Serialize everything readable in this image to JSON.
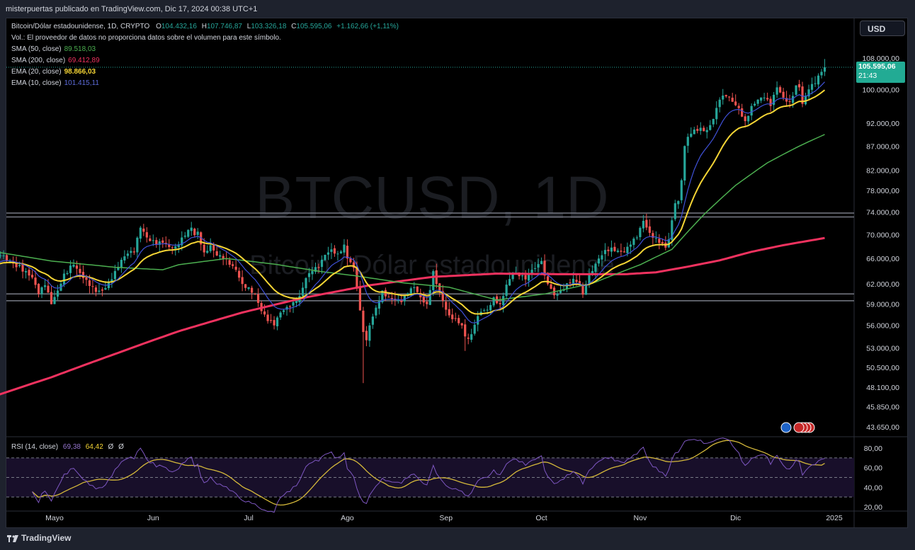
{
  "caption": "misterpuertas publicado en TradingView.com, Dic 17, 2024 00:38 UTC+1",
  "legend": {
    "title": "Bitcoin/Dólar estadounidense, 1D, CRYPTO",
    "o_label": "O",
    "o": "104.432,16",
    "h_label": "H",
    "h": "107.746,87",
    "l_label": "L",
    "l": "103.326,18",
    "c_label": "C",
    "c": "105.595,06",
    "change": "+1.162,66 (+1,11%)",
    "vol_note": "Vol.: El proveedor de datos no proporciona datos sobre el volumen para este símbolo.",
    "sma50_label": "SMA (50, close)",
    "sma50": "89.518,03",
    "sma200_label": "SMA (200, close)",
    "sma200": "69.412,89",
    "ema20_label": "EMA (20, close)",
    "ema20": "98.866,03",
    "ema10_label": "EMA (10, close)",
    "ema10": "101.415,11"
  },
  "rsi_legend": {
    "label": "RSI (14, close)",
    "rsi": "69,38",
    "ma": "64,42",
    "x1": "Ø",
    "x2": "Ø"
  },
  "currency": "USD",
  "price_tag": {
    "price": "105.595,06",
    "countdown": "21:43"
  },
  "watermark": {
    "symbol": "BTCUSD, 1D",
    "name": "Bitcoin / Dólar estadounidense"
  },
  "footer": "TradingView",
  "colors": {
    "up": "#26a69a",
    "down": "#ef5350",
    "sma50": "#4caf50",
    "sma200": "#f0325f",
    "ema20": "#f5d535",
    "ema10": "#3f51d8",
    "rsi": "#7e57c2",
    "rsi_ma": "#d4b83a",
    "level_lines": "#787b86",
    "accent": "#22ab94"
  },
  "chart_data": {
    "type": "candlestick",
    "symbol": "BTCUSD",
    "interval": "1D",
    "price_scale": "log",
    "y_ticks": [
      {
        "v": 108000,
        "label": "108.000,00"
      },
      {
        "v": 100000,
        "label": "100.000,00"
      },
      {
        "v": 92000,
        "label": "92.000,00"
      },
      {
        "v": 87000,
        "label": "87.000,00"
      },
      {
        "v": 82000,
        "label": "82.000,00"
      },
      {
        "v": 78000,
        "label": "78.000,00"
      },
      {
        "v": 74000,
        "label": "74.000,00"
      },
      {
        "v": 70000,
        "label": "70.000,00"
      },
      {
        "v": 66000,
        "label": "66.000,00"
      },
      {
        "v": 62000,
        "label": "62.000,00"
      },
      {
        "v": 59000,
        "label": "59.000,00"
      },
      {
        "v": 56000,
        "label": "56.000,00"
      },
      {
        "v": 53000,
        "label": "53.000,00"
      },
      {
        "v": 50500,
        "label": "50.500,00"
      },
      {
        "v": 48100,
        "label": "48.100,00"
      },
      {
        "v": 45850,
        "label": "45.850,00"
      },
      {
        "v": 43650,
        "label": "43.650,00"
      }
    ],
    "x_ticks": [
      {
        "day": 21,
        "label": "Mayo"
      },
      {
        "day": 52,
        "label": "Jun"
      },
      {
        "day": 82,
        "label": "Jul"
      },
      {
        "day": 113,
        "label": "Ago"
      },
      {
        "day": 144,
        "label": "Sep"
      },
      {
        "day": 174,
        "label": "Oct"
      },
      {
        "day": 205,
        "label": "Nov"
      },
      {
        "day": 235,
        "label": "Dic"
      },
      {
        "day": 266,
        "label": "2025"
      }
    ],
    "start_date": "2024-04-10",
    "horizontal_levels": [
      73800,
      73100,
      60500,
      59500
    ],
    "close_anchors": [
      [
        0,
        64800
      ],
      [
        4,
        66500
      ],
      [
        8,
        65200
      ],
      [
        12,
        64000
      ],
      [
        14,
        63000
      ],
      [
        16,
        60500
      ],
      [
        18,
        61800
      ],
      [
        20,
        59000
      ],
      [
        22,
        61000
      ],
      [
        24,
        63600
      ],
      [
        27,
        65000
      ],
      [
        30,
        62900
      ],
      [
        32,
        61700
      ],
      [
        34,
        60800
      ],
      [
        36,
        61000
      ],
      [
        38,
        62200
      ],
      [
        40,
        64000
      ],
      [
        42,
        65800
      ],
      [
        44,
        66800
      ],
      [
        46,
        67000
      ],
      [
        48,
        71200
      ],
      [
        50,
        69500
      ],
      [
        53,
        68300
      ],
      [
        55,
        68600
      ],
      [
        57,
        67900
      ],
      [
        59,
        68000
      ],
      [
        61,
        69500
      ],
      [
        63,
        70800
      ],
      [
        64,
        71200
      ],
      [
        65,
        69900
      ],
      [
        66,
        70500
      ],
      [
        68,
        67000
      ],
      [
        70,
        68200
      ],
      [
        72,
        66500
      ],
      [
        74,
        66000
      ],
      [
        76,
        65000
      ],
      [
        78,
        64200
      ],
      [
        80,
        62000
      ],
      [
        82,
        61500
      ],
      [
        84,
        60500
      ],
      [
        86,
        58000
      ],
      [
        88,
        56600
      ],
      [
        90,
        56000
      ],
      [
        92,
        57800
      ],
      [
        94,
        58600
      ],
      [
        96,
        59300
      ],
      [
        98,
        60200
      ],
      [
        100,
        62900
      ],
      [
        102,
        64000
      ],
      [
        104,
        64500
      ],
      [
        106,
        66600
      ],
      [
        108,
        67500
      ],
      [
        110,
        66800
      ],
      [
        112,
        68300
      ],
      [
        113,
        66000
      ],
      [
        114,
        65400
      ],
      [
        115,
        64500
      ],
      [
        116,
        61500
      ],
      [
        117,
        58100
      ],
      [
        118,
        55100
      ],
      [
        119,
        54000
      ],
      [
        120,
        56000
      ],
      [
        122,
        58500
      ],
      [
        124,
        61000
      ],
      [
        126,
        60000
      ],
      [
        128,
        59600
      ],
      [
        130,
        59300
      ],
      [
        132,
        60600
      ],
      [
        134,
        61500
      ],
      [
        136,
        60000
      ],
      [
        138,
        59000
      ],
      [
        140,
        64000
      ],
      [
        141,
        62000
      ],
      [
        143,
        59500
      ],
      [
        145,
        57400
      ],
      [
        147,
        57000
      ],
      [
        149,
        56000
      ],
      [
        150,
        54500
      ],
      [
        151,
        54200
      ],
      [
        152,
        54800
      ],
      [
        153,
        56100
      ],
      [
        155,
        57900
      ],
      [
        157,
        58200
      ],
      [
        159,
        60000
      ],
      [
        161,
        59000
      ],
      [
        163,
        61900
      ],
      [
        165,
        63500
      ],
      [
        167,
        63200
      ],
      [
        169,
        62700
      ],
      [
        171,
        64200
      ],
      [
        173,
        65100
      ],
      [
        174,
        65600
      ],
      [
        175,
        63300
      ],
      [
        176,
        62000
      ],
      [
        178,
        60300
      ],
      [
        180,
        61000
      ],
      [
        182,
        62100
      ],
      [
        184,
        62800
      ],
      [
        186,
        61800
      ],
      [
        187,
        60400
      ],
      [
        188,
        62000
      ],
      [
        190,
        64000
      ],
      [
        192,
        66000
      ],
      [
        194,
        67400
      ],
      [
        196,
        67800
      ],
      [
        198,
        67300
      ],
      [
        200,
        67000
      ],
      [
        202,
        68300
      ],
      [
        204,
        69500
      ],
      [
        206,
        72400
      ],
      [
        208,
        70300
      ],
      [
        210,
        69400
      ],
      [
        212,
        68500
      ],
      [
        213,
        67800
      ],
      [
        214,
        69200
      ],
      [
        215,
        72500
      ],
      [
        216,
        75600
      ],
      [
        217,
        76000
      ],
      [
        218,
        80000
      ],
      [
        219,
        87000
      ],
      [
        220,
        89000
      ],
      [
        222,
        90600
      ],
      [
        224,
        91000
      ],
      [
        226,
        90500
      ],
      [
        228,
        93000
      ],
      [
        230,
        97500
      ],
      [
        232,
        98300
      ],
      [
        234,
        97000
      ],
      [
        236,
        95500
      ],
      [
        238,
        92500
      ],
      [
        240,
        96000
      ],
      [
        242,
        97500
      ],
      [
        244,
        98000
      ],
      [
        246,
        96000
      ],
      [
        248,
        100500
      ],
      [
        250,
        98000
      ],
      [
        252,
        97000
      ],
      [
        254,
        101000
      ],
      [
        255,
        100500
      ],
      [
        256,
        96500
      ],
      [
        258,
        100000
      ],
      [
        260,
        101500
      ],
      [
        262,
        104400
      ],
      [
        263,
        105595
      ]
    ],
    "last_candle": {
      "o": 104432.16,
      "h": 107746.87,
      "l": 103326.18,
      "c": 105595.06
    },
    "indicators": {
      "sma50": {
        "last": 89518.03,
        "anchors": [
          [
            0,
            67300
          ],
          [
            20,
            65600
          ],
          [
            40,
            64600
          ],
          [
            55,
            64200
          ],
          [
            60,
            65000
          ],
          [
            75,
            66000
          ],
          [
            90,
            65100
          ],
          [
            105,
            63900
          ],
          [
            115,
            63300
          ],
          [
            130,
            62200
          ],
          [
            145,
            61500
          ],
          [
            160,
            59600
          ],
          [
            175,
            60500
          ],
          [
            190,
            62100
          ],
          [
            205,
            65000
          ],
          [
            215,
            67500
          ],
          [
            225,
            73500
          ],
          [
            235,
            79000
          ],
          [
            245,
            83500
          ],
          [
            255,
            87000
          ],
          [
            263,
            89518
          ]
        ]
      },
      "sma200": {
        "last": 69412.89,
        "anchors": [
          [
            0,
            46800
          ],
          [
            20,
            49300
          ],
          [
            40,
            52200
          ],
          [
            60,
            55200
          ],
          [
            80,
            57800
          ],
          [
            100,
            60000
          ],
          [
            120,
            61800
          ],
          [
            140,
            63100
          ],
          [
            160,
            63600
          ],
          [
            180,
            63500
          ],
          [
            200,
            63500
          ],
          [
            210,
            63800
          ],
          [
            220,
            64700
          ],
          [
            230,
            65700
          ],
          [
            240,
            67100
          ],
          [
            250,
            68200
          ],
          [
            263,
            69413
          ]
        ]
      },
      "ema20": {
        "last": 98866.03,
        "period": 20
      },
      "ema10": {
        "last": 101415.11,
        "period": 10
      }
    },
    "rsi": {
      "ticks": [
        {
          "v": 80,
          "label": "80,00"
        },
        {
          "v": 60,
          "label": "60,00"
        },
        {
          "v": 40,
          "label": "40,00"
        },
        {
          "v": 20,
          "label": "20,00"
        }
      ],
      "bands": [
        70,
        50,
        30
      ],
      "last": 69.38,
      "ma_last": 64.42
    }
  }
}
